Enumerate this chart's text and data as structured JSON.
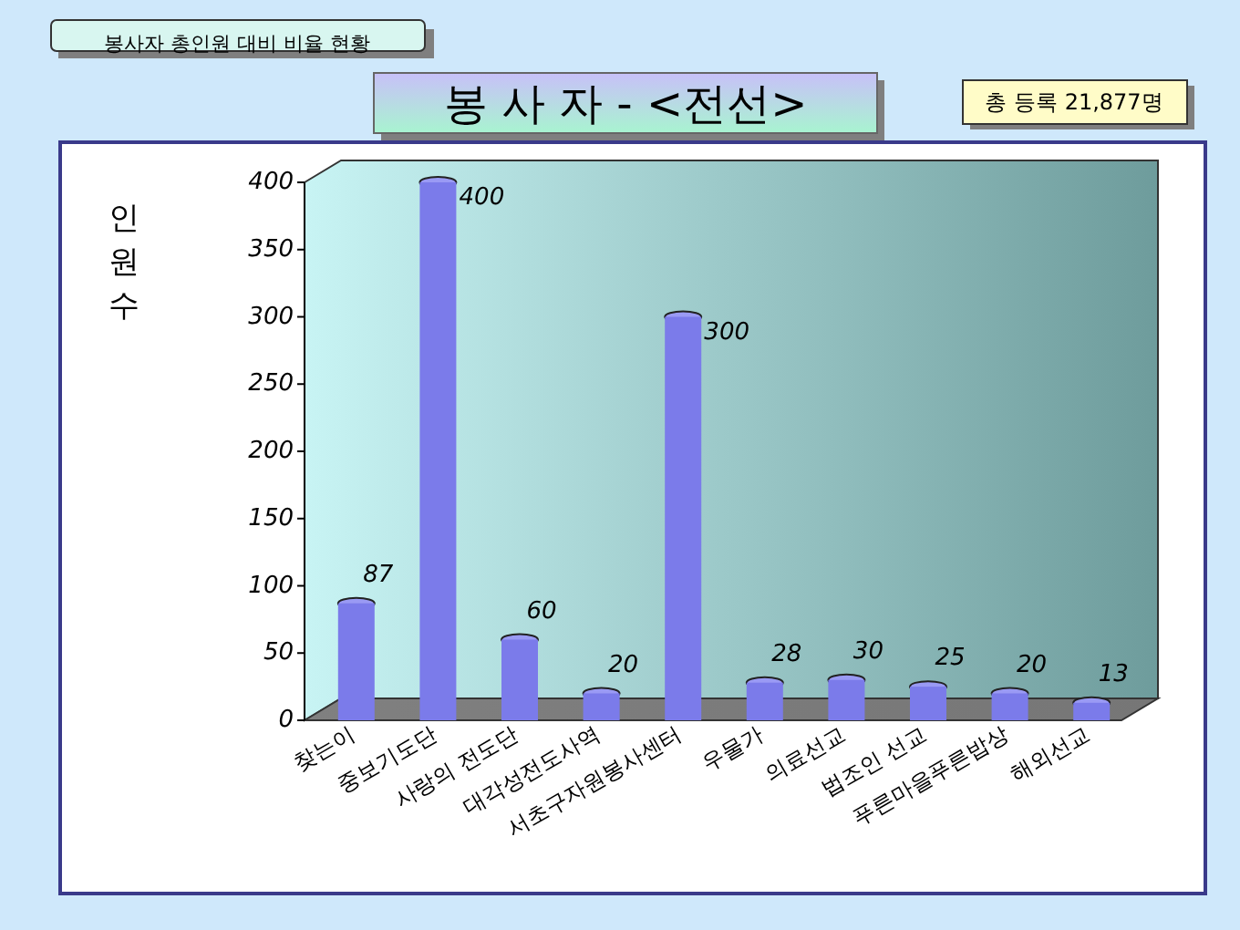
{
  "chart_data": {
    "type": "bar",
    "title": "봉 사 자 - <전선>",
    "ylabel": "인원수",
    "annotations": [
      "봉사자 총인원 대비 비율 현황",
      "총 등록 21,877명"
    ],
    "categories": [
      "찾는이",
      "중보기도단",
      "사랑의 전도단",
      "대각성전도사역",
      "서초구자원봉사센터",
      "우물가",
      "의료선교",
      "법조인 선교",
      "푸른마을푸른밥상",
      "해외선교"
    ],
    "values": [
      87,
      400,
      60,
      20,
      300,
      28,
      30,
      25,
      20,
      13
    ],
    "color": "#7b7bea",
    "ylim": [
      0,
      400
    ],
    "yticks": [
      0,
      50,
      100,
      150,
      200,
      250,
      300,
      350,
      400
    ],
    "data_labels": true,
    "grid": false
  }
}
